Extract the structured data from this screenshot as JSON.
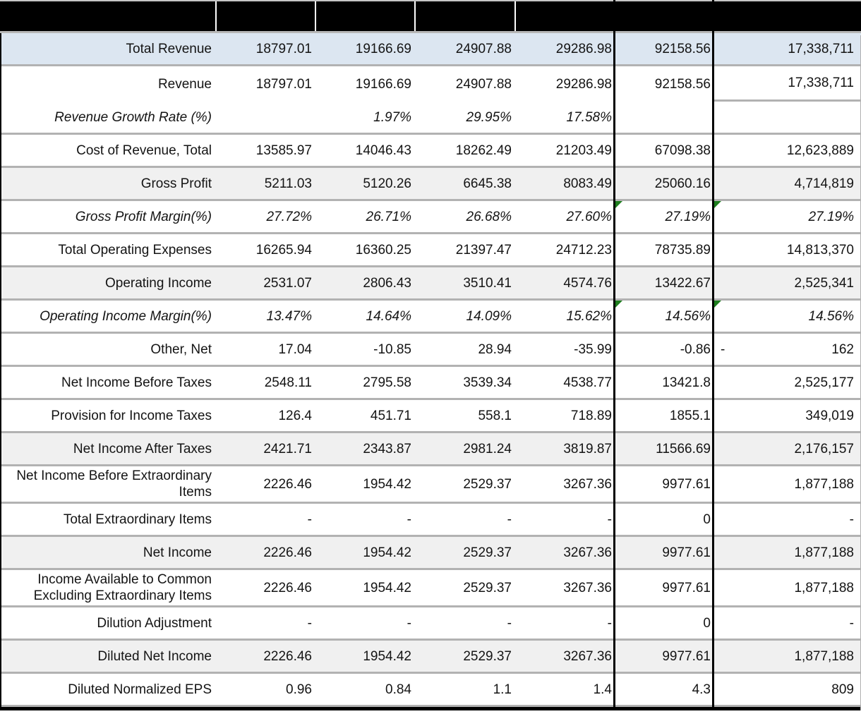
{
  "colors": {
    "header_bg": "#000000",
    "highlight_row_bg": "#dce6f1",
    "band_row_bg": "#f0f0f0",
    "row_border": "#b2b2b2",
    "column_divider": "#000000",
    "error_indicator_green": "#1e7e1e"
  },
  "header": {
    "cells": [
      "",
      "",
      "",
      "",
      "",
      "",
      ""
    ]
  },
  "rows": [
    {
      "name": "total-revenue",
      "label": "Total Revenue",
      "bg": "blue",
      "cells": [
        "18797.01",
        "19166.69",
        "24907.88",
        "29286.98",
        "92158.56",
        "17,338,711"
      ]
    },
    {
      "name": "revenue",
      "label": "Revenue",
      "bg": "white",
      "partial_bottom_border": true,
      "cells": [
        "18797.01",
        "19166.69",
        "24907.88",
        "29286.98",
        "92158.56",
        "17,338,711"
      ]
    },
    {
      "name": "revenue-growth-rate",
      "label": "Revenue Growth Rate (%)",
      "bg": "white",
      "italic": true,
      "cells": [
        "",
        "1.97%",
        "29.95%",
        "17.58%",
        "",
        ""
      ]
    },
    {
      "name": "cost-of-revenue-total",
      "label": "Cost of Revenue, Total",
      "bg": "white",
      "cells": [
        "13585.97",
        "14046.43",
        "18262.49",
        "21203.49",
        "67098.38",
        "12,623,889"
      ]
    },
    {
      "name": "gross-profit",
      "label": "Gross Profit",
      "bg": "gray",
      "cells": [
        "5211.03",
        "5120.26",
        "6645.38",
        "8083.49",
        "25060.16",
        "4,714,819"
      ]
    },
    {
      "name": "gross-profit-margin",
      "label": "Gross Profit Margin(%)",
      "bg": "white",
      "italic": true,
      "indicators": [
        4,
        5
      ],
      "cells": [
        "27.72%",
        "26.71%",
        "26.68%",
        "27.60%",
        "27.19%",
        "27.19%"
      ]
    },
    {
      "name": "total-operating-expenses",
      "label": "Total Operating Expenses",
      "bg": "white",
      "cells": [
        "16265.94",
        "16360.25",
        "21397.47",
        "24712.23",
        "78735.89",
        "14,813,370"
      ]
    },
    {
      "name": "operating-income",
      "label": "Operating Income",
      "bg": "gray",
      "cells": [
        "2531.07",
        "2806.43",
        "3510.41",
        "4574.76",
        "13422.67",
        "2,525,341"
      ]
    },
    {
      "name": "operating-income-margin",
      "label": "Operating Income Margin(%)",
      "bg": "white",
      "italic": true,
      "indicators": [
        4,
        5
      ],
      "cells": [
        "13.47%",
        "14.64%",
        "14.09%",
        "15.62%",
        "14.56%",
        "14.56%"
      ]
    },
    {
      "name": "other-net",
      "label": "Other, Net",
      "bg": "white",
      "c6_sign": "-",
      "cells": [
        "17.04",
        "-10.85",
        "28.94",
        "-35.99",
        "-0.86",
        "162"
      ]
    },
    {
      "name": "net-income-before-taxes",
      "label": "Net Income Before Taxes",
      "bg": "white",
      "cells": [
        "2548.11",
        "2795.58",
        "3539.34",
        "4538.77",
        "13421.8",
        "2,525,177"
      ]
    },
    {
      "name": "provision-for-income-taxes",
      "label": "Provision for Income Taxes",
      "bg": "white",
      "cells": [
        "126.4",
        "451.71",
        "558.1",
        "718.89",
        "1855.1",
        "349,019"
      ]
    },
    {
      "name": "net-income-after-taxes",
      "label": "Net Income After Taxes",
      "bg": "gray",
      "cells": [
        "2421.71",
        "2343.87",
        "2981.24",
        "3819.87",
        "11566.69",
        "2,176,157"
      ]
    },
    {
      "name": "net-income-before-extraordinary-items",
      "label": "Net Income Before Extraordinary Items",
      "bg": "white",
      "cells": [
        "2226.46",
        "1954.42",
        "2529.37",
        "3267.36",
        "9977.61",
        "1,877,188"
      ]
    },
    {
      "name": "total-extraordinary-items",
      "label": "Total Extraordinary Items",
      "bg": "white",
      "cells": [
        "-",
        "-",
        "-",
        "-",
        "0",
        "-"
      ]
    },
    {
      "name": "net-income",
      "label": "Net Income",
      "bg": "gray",
      "cells": [
        "2226.46",
        "1954.42",
        "2529.37",
        "3267.36",
        "9977.61",
        "1,877,188"
      ]
    },
    {
      "name": "income-available-to-common-excluding-extraordinary-items",
      "label": "Income Available to Common Excluding Extraordinary Items",
      "bg": "white",
      "cells": [
        "2226.46",
        "1954.42",
        "2529.37",
        "3267.36",
        "9977.61",
        "1,877,188"
      ]
    },
    {
      "name": "dilution-adjustment",
      "label": "Dilution Adjustment",
      "bg": "white",
      "cells": [
        "-",
        "-",
        "-",
        "-",
        "0",
        "-"
      ]
    },
    {
      "name": "diluted-net-income",
      "label": "Diluted Net Income",
      "bg": "gray",
      "cells": [
        "2226.46",
        "1954.42",
        "2529.37",
        "3267.36",
        "9977.61",
        "1,877,188"
      ]
    },
    {
      "name": "diluted-normalized-eps",
      "label": "Diluted Normalized EPS",
      "bg": "white",
      "cells": [
        "0.96",
        "0.84",
        "1.1",
        "1.4",
        "4.3",
        "809"
      ]
    }
  ]
}
